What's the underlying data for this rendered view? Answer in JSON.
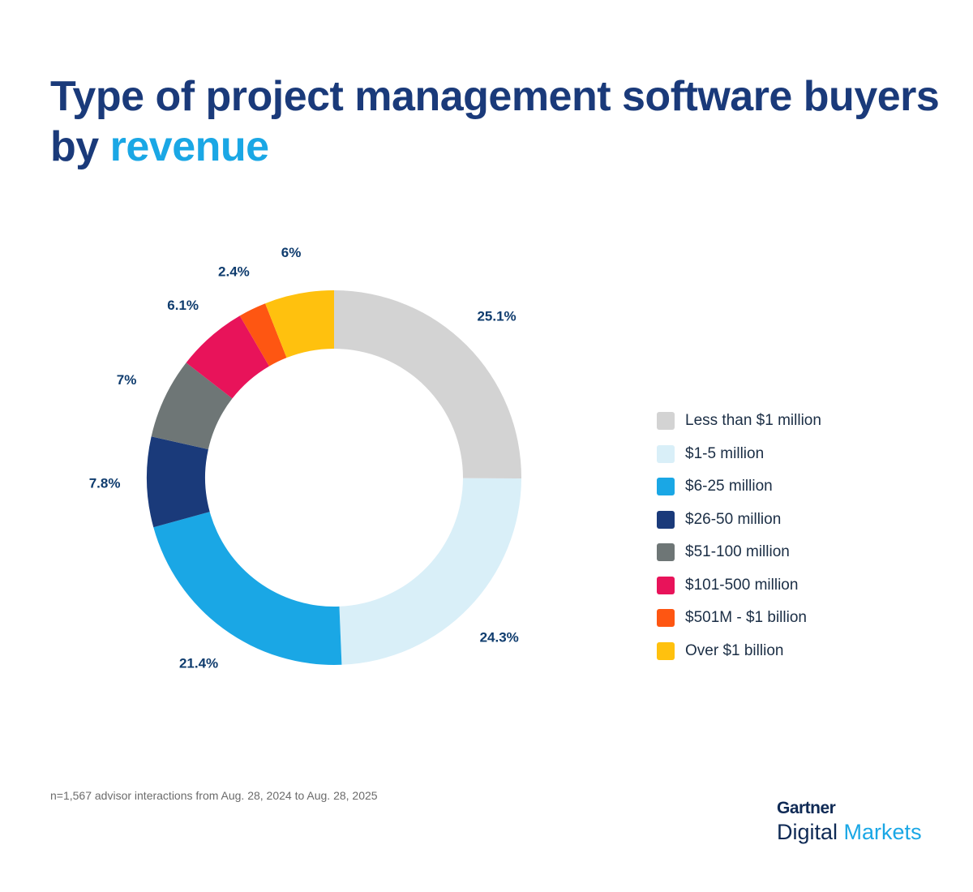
{
  "title_part1": "Type of project management software buyers by ",
  "title_highlight": "revenue",
  "chart_data": {
    "type": "pie",
    "subtype": "donut",
    "title": "Type of project management software buyers by revenue",
    "categories": [
      "Less than $1 million",
      "$1-5 million",
      "$6-25 million",
      "$26-50 million",
      "$51-100 million",
      "$101-500 million",
      "$501M - $1 billion",
      "Over $1 billion"
    ],
    "values": [
      25.1,
      24.3,
      21.4,
      7.8,
      7,
      6.1,
      2.4,
      6
    ],
    "labels": [
      "25.1%",
      "24.3%",
      "21.4%",
      "7.8%",
      "7%",
      "6.1%",
      "2.4%",
      "6%"
    ],
    "colors": [
      "#d3d3d3",
      "#d9eff8",
      "#1aa7e5",
      "#1a3a7a",
      "#6e7676",
      "#e8135a",
      "#fe5612",
      "#ffc10e"
    ],
    "legend_position": "right"
  },
  "footnote": "n=1,567 advisor interactions from Aug. 28, 2024 to Aug. 28, 2025",
  "logo": {
    "line1": "Gartner",
    "line2a": "Digital",
    "line2b": "Markets"
  }
}
